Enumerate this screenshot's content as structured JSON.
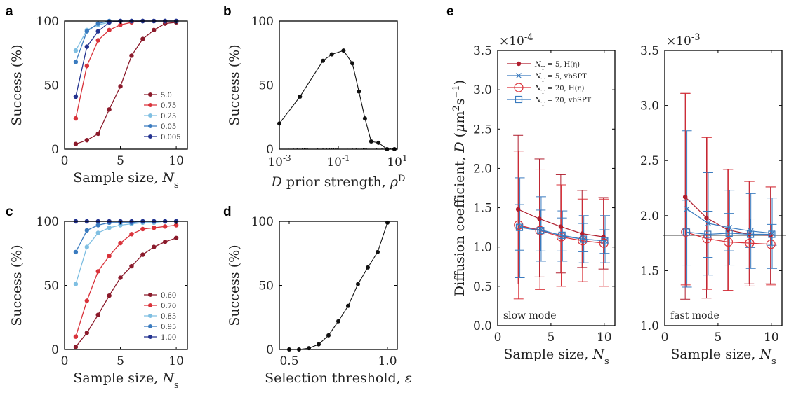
{
  "panel_labels": [
    "a",
    "b",
    "c",
    "d",
    "e"
  ],
  "chart_data": [
    {
      "id": "a",
      "type": "line",
      "xlabel": "Sample size, N_s",
      "ylabel": "Success (%)",
      "xlim": [
        0,
        11
      ],
      "ylim": [
        0,
        100
      ],
      "xticks": [
        0,
        5,
        10
      ],
      "yticks": [
        0,
        50,
        100
      ],
      "x": [
        1,
        2,
        3,
        4,
        5,
        6,
        7,
        8,
        9,
        10
      ],
      "legend_position": "lower-right",
      "series": [
        {
          "name": "5.0",
          "color": "#8b1a2b",
          "values": [
            4,
            7,
            12,
            31,
            49,
            73,
            86,
            93,
            98,
            99
          ]
        },
        {
          "name": "0.75",
          "color": "#d9323a",
          "values": [
            24,
            65,
            85,
            93,
            97,
            99,
            100,
            100,
            100,
            100
          ]
        },
        {
          "name": "0.25",
          "color": "#7fbfe2",
          "values": [
            77,
            93,
            97,
            99,
            100,
            100,
            100,
            100,
            100,
            100
          ]
        },
        {
          "name": "0.05",
          "color": "#3a7bbf",
          "values": [
            68,
            92,
            98,
            100,
            100,
            100,
            100,
            100,
            100,
            100
          ]
        },
        {
          "name": "0.005",
          "color": "#23328f",
          "values": [
            41,
            80,
            92,
            99,
            100,
            100,
            100,
            100,
            100,
            100
          ]
        }
      ]
    },
    {
      "id": "b",
      "type": "line",
      "xlabel": "D prior strength, ρ^D",
      "ylabel": "Success (%)",
      "xscale": "log",
      "xlim": [
        0.001,
        10
      ],
      "ylim": [
        0,
        100
      ],
      "xticks": [
        "10^-3",
        "10^-1",
        "10^1"
      ],
      "yticks": [
        0,
        50,
        100
      ],
      "series": [
        {
          "color": "#111111",
          "x": [
            0.001,
            0.005,
            0.03,
            0.06,
            0.15,
            0.3,
            0.5,
            0.8,
            1.3,
            2.3,
            4.5,
            8
          ],
          "values": [
            20,
            41,
            69,
            74,
            77,
            67,
            45,
            24,
            6,
            5,
            0,
            0
          ]
        }
      ]
    },
    {
      "id": "c",
      "type": "line",
      "xlabel": "Sample size, N_s",
      "ylabel": "Success (%)",
      "xlim": [
        0,
        11
      ],
      "ylim": [
        0,
        100
      ],
      "xticks": [
        0,
        5,
        10
      ],
      "yticks": [
        0,
        50,
        100
      ],
      "x": [
        1,
        2,
        3,
        4,
        5,
        6,
        7,
        8,
        9,
        10
      ],
      "legend_position": "lower-right",
      "series": [
        {
          "name": "0.60",
          "color": "#8b1a2b",
          "values": [
            2,
            13,
            27,
            42,
            56,
            65,
            74,
            80,
            84,
            87
          ]
        },
        {
          "name": "0.70",
          "color": "#d9323a",
          "values": [
            10,
            38,
            61,
            73,
            83,
            90,
            94,
            95,
            96,
            97
          ]
        },
        {
          "name": "0.85",
          "color": "#7fbfe2",
          "values": [
            51,
            80,
            91,
            95,
            97,
            98,
            99,
            99,
            100,
            100
          ]
        },
        {
          "name": "0.95",
          "color": "#3a7bbf",
          "values": [
            76,
            93,
            97,
            99,
            99,
            99,
            100,
            100,
            100,
            100
          ]
        },
        {
          "name": "1.00",
          "color": "#23328f",
          "values": [
            100,
            100,
            100,
            100,
            100,
            100,
            100,
            100,
            100,
            100
          ]
        }
      ]
    },
    {
      "id": "d",
      "type": "line",
      "xlabel": "Selection threshold, ε",
      "ylabel": "Success (%)",
      "xlim": [
        0.45,
        1.05
      ],
      "ylim": [
        0,
        100
      ],
      "xticks": [
        0.5,
        1.0
      ],
      "xtick_labels": [
        "0.5",
        "1.0"
      ],
      "yticks": [
        0,
        50,
        100
      ],
      "series": [
        {
          "color": "#111111",
          "x": [
            0.5,
            0.55,
            0.6,
            0.65,
            0.7,
            0.75,
            0.8,
            0.85,
            0.9,
            0.95,
            1.0
          ],
          "values": [
            0,
            0,
            1,
            4,
            11,
            22,
            34,
            51,
            64,
            76,
            99
          ]
        }
      ]
    },
    {
      "id": "e-slow",
      "type": "line",
      "error_bars": true,
      "xlabel": "Sample size, N_s",
      "ylabel": "Diffusion coefficient, D (μm²s⁻¹)",
      "multiplier": "×10^-4",
      "annotation": "slow mode",
      "xlim": [
        0,
        11
      ],
      "ylim": [
        0,
        3.5
      ],
      "xticks": [
        0,
        5,
        10
      ],
      "yticks": [
        0,
        0.5,
        1.0,
        1.5,
        2.0,
        2.5,
        3.0,
        3.5
      ],
      "ytick_labels": [
        "0.0",
        "0.5",
        "1.0",
        "1.5",
        "2.0",
        "2.5",
        "3.0",
        "3.5"
      ],
      "x": [
        2,
        4,
        6,
        8,
        10
      ],
      "legend_position": "top-left",
      "series": [
        {
          "name": "N_T = 5, H(η)",
          "color": "#b01e2e",
          "marker": "dot",
          "values": [
            1.48,
            1.36,
            1.26,
            1.17,
            1.13
          ],
          "lower": [
            0.53,
            0.62,
            0.67,
            0.74,
            0.72
          ],
          "upper": [
            2.42,
            2.12,
            1.92,
            1.72,
            1.63
          ]
        },
        {
          "name": "N_T = 5, vbSPT",
          "color": "#3a7bbf",
          "marker": "x",
          "values": [
            1.26,
            1.22,
            1.14,
            1.1,
            1.08
          ],
          "lower": [
            0.61,
            0.82,
            0.82,
            0.8,
            0.8
          ],
          "upper": [
            1.88,
            1.64,
            1.46,
            1.4,
            1.4
          ]
        },
        {
          "name": "N_T = 20, H(η)",
          "color": "#d9323a",
          "marker": "circle",
          "values": [
            1.28,
            1.21,
            1.13,
            1.08,
            1.05
          ],
          "lower": [
            0.34,
            0.46,
            0.5,
            0.56,
            0.5
          ],
          "upper": [
            2.22,
            1.99,
            1.79,
            1.61,
            1.61
          ]
        },
        {
          "name": "N_T = 20, vbSPT",
          "color": "#3a7bbf",
          "marker": "square",
          "values": [
            1.25,
            1.21,
            1.15,
            1.1,
            1.08
          ],
          "lower": [
            0.96,
            0.95,
            0.95,
            0.94,
            0.92
          ],
          "upper": [
            1.54,
            1.47,
            1.37,
            1.3,
            1.22
          ]
        }
      ]
    },
    {
      "id": "e-fast",
      "type": "line",
      "error_bars": true,
      "xlabel": "Sample size, N_s",
      "multiplier": "×10^-3",
      "annotation": "fast mode",
      "xlim": [
        0,
        11
      ],
      "ylim": [
        1.0,
        3.5
      ],
      "xticks": [
        0,
        5,
        10
      ],
      "yticks": [
        1.0,
        1.5,
        2.0,
        2.5,
        3.0,
        3.5
      ],
      "ytick_labels": [
        "1.0",
        "1.5",
        "2.0",
        "2.5",
        "3.0",
        "3.5"
      ],
      "reference_line": 1.82,
      "x": [
        2,
        4,
        6,
        8,
        10
      ],
      "series": [
        {
          "name": "N_T = 5, H(η)",
          "color": "#b01e2e",
          "marker": "dot",
          "values": [
            2.17,
            1.98,
            1.87,
            1.83,
            1.82
          ],
          "lower": [
            1.24,
            1.25,
            1.32,
            1.38,
            1.38
          ],
          "upper": [
            3.11,
            2.71,
            2.42,
            2.31,
            2.26
          ]
        },
        {
          "name": "N_T = 5, vbSPT",
          "color": "#3a7bbf",
          "marker": "x",
          "values": [
            2.06,
            1.93,
            1.89,
            1.86,
            1.84
          ],
          "lower": [
            1.35,
            1.46,
            1.55,
            1.52,
            1.52
          ],
          "upper": [
            2.77,
            2.39,
            2.23,
            2.2,
            2.16
          ]
        },
        {
          "name": "N_T = 20, H(η)",
          "color": "#d9323a",
          "marker": "circle",
          "values": [
            1.85,
            1.79,
            1.76,
            1.75,
            1.74
          ],
          "lower": [
            1.37,
            1.33,
            1.32,
            1.36,
            1.37
          ],
          "upper": [
            3.11,
            2.71,
            2.42,
            2.31,
            2.26
          ]
        },
        {
          "name": "N_T = 20, vbSPT",
          "color": "#3a7bbf",
          "marker": "square",
          "values": [
            1.85,
            1.83,
            1.84,
            1.83,
            1.83
          ],
          "lower": [
            1.55,
            1.62,
            1.68,
            1.71,
            1.73
          ],
          "upper": [
            2.14,
            2.04,
            2.02,
            1.97,
            1.92
          ]
        }
      ]
    }
  ]
}
